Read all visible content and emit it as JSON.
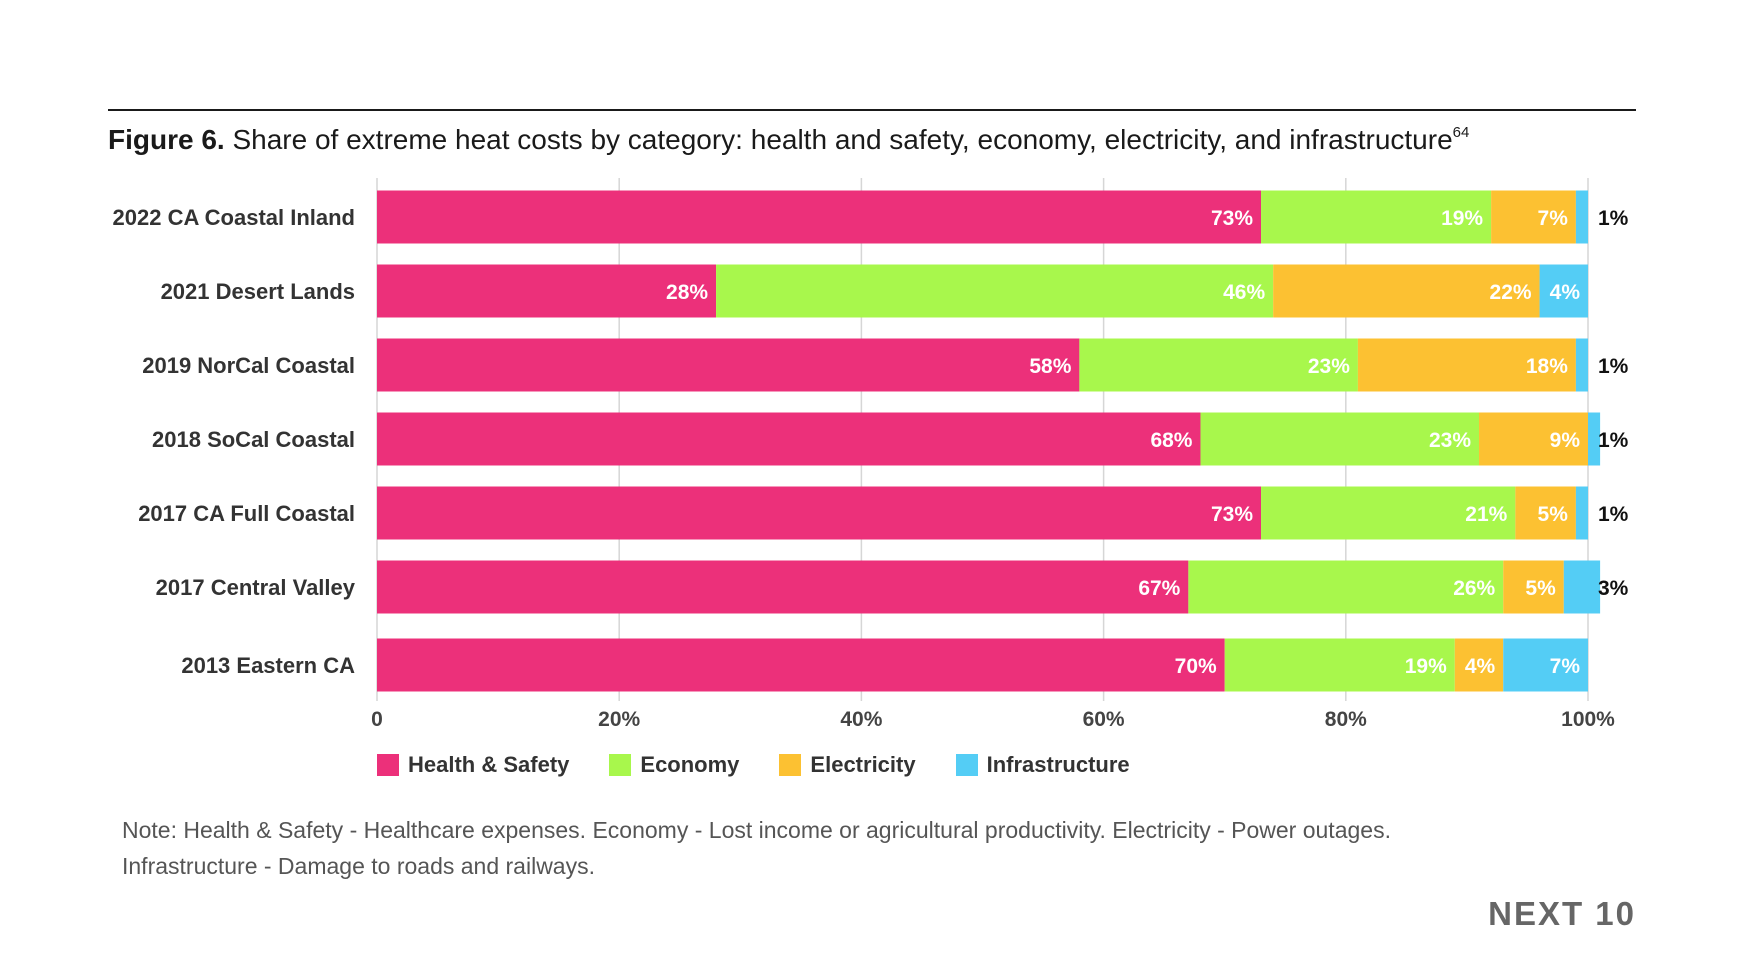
{
  "figure": {
    "label": "Figure 6.",
    "title": "Share of extreme heat costs by category: health and safety, economy, electricity, and infrastructure",
    "footnote": "64"
  },
  "chart_data": {
    "type": "bar",
    "orientation": "horizontal",
    "stacked": true,
    "categories": [
      "2022 CA Coastal Inland",
      "2021 Desert Lands",
      "2019 NorCal Coastal",
      "2018 SoCal Coastal",
      "2017 CA Full Coastal",
      "2017 Central Valley",
      "2013 Eastern CA"
    ],
    "series": [
      {
        "name": "Health & Safety",
        "color": "#ec307a",
        "values": [
          73,
          28,
          58,
          68,
          73,
          67,
          70
        ]
      },
      {
        "name": "Economy",
        "color": "#a8f74c",
        "values": [
          19,
          46,
          23,
          23,
          21,
          26,
          19
        ]
      },
      {
        "name": "Electricity",
        "color": "#fcc132",
        "values": [
          7,
          22,
          18,
          9,
          5,
          5,
          4
        ]
      },
      {
        "name": "Infrastructure",
        "color": "#54cdf5",
        "values": [
          1,
          4,
          1,
          1,
          1,
          3,
          7
        ]
      }
    ],
    "x_ticks": [
      "0",
      "20%",
      "40%",
      "60%",
      "80%",
      "100%"
    ],
    "xlim": [
      0,
      100
    ],
    "grid": true,
    "legend": "bottom"
  },
  "note": {
    "line1": "Note: Health & Safety - Healthcare expenses. Economy - Lost income or agricultural productivity. Electricity - Power outages.",
    "line2": "Infrastructure - Damage to roads and railways."
  },
  "brand": "NEXT 10"
}
